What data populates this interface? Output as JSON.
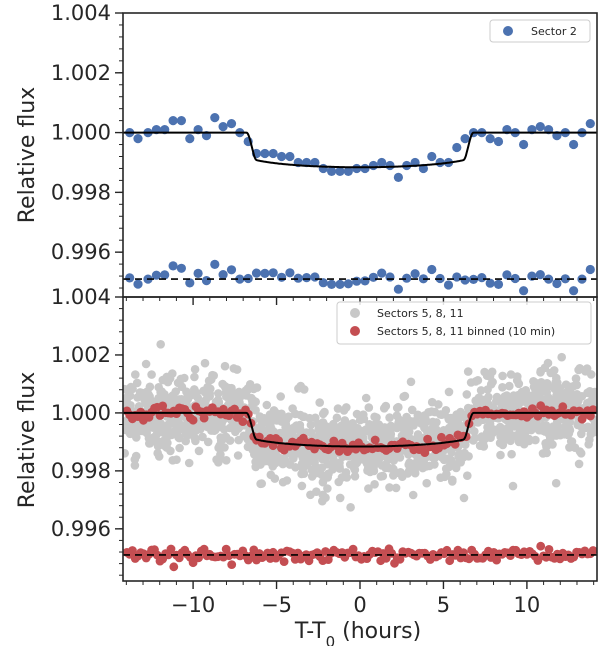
{
  "chart_data": [
    {
      "type": "scatter",
      "panel": "top",
      "xlim": [
        -14.2,
        14.2
      ],
      "ylim": [
        0.9945,
        1.004
      ],
      "ylabel": "Relative flux",
      "yticks": [
        0.996,
        0.998,
        1.0,
        1.002,
        1.004
      ],
      "ytick_labels": [
        "0.996",
        "0.998",
        "1.000",
        "1.002",
        "1.004"
      ],
      "grid": false,
      "legend_position": "top-right",
      "series": [
        {
          "name": "Sector 2",
          "kind": "points",
          "color": "#4c72b0",
          "x": [
            -13.8,
            -13.3,
            -12.7,
            -12.2,
            -11.7,
            -11.2,
            -10.7,
            -10.2,
            -9.7,
            -9.2,
            -8.7,
            -8.2,
            -7.7,
            -7.2,
            -6.7,
            -6.2,
            -5.7,
            -5.2,
            -4.7,
            -4.2,
            -3.7,
            -3.2,
            -2.7,
            -2.2,
            -1.7,
            -1.2,
            -0.7,
            -0.2,
            0.3,
            0.8,
            1.3,
            1.8,
            2.3,
            2.8,
            3.3,
            3.8,
            4.3,
            4.8,
            5.3,
            5.8,
            6.3,
            6.8,
            7.3,
            7.8,
            8.3,
            8.8,
            9.3,
            9.8,
            10.3,
            10.8,
            11.3,
            11.8,
            12.3,
            12.8,
            13.3,
            13.8
          ],
          "y": [
            1.0,
            0.9998,
            1.0,
            1.0001,
            1.0001,
            1.0004,
            1.0004,
            0.9998,
            1.0001,
            0.9999,
            1.0005,
            1.0002,
            1.0003,
            1.0,
            0.9997,
            0.9993,
            0.9993,
            0.9993,
            0.9992,
            0.9992,
            0.999,
            0.999,
            0.999,
            0.9988,
            0.9987,
            0.9987,
            0.9987,
            0.9988,
            0.9988,
            0.9989,
            0.999,
            0.9989,
            0.9985,
            0.9989,
            0.999,
            0.9988,
            0.9992,
            0.999,
            0.999,
            0.9995,
            0.9998,
            1.0,
            1.0,
            0.9998,
            0.9997,
            1.0001,
            1.0,
            0.9996,
            1.0001,
            1.0002,
            1.0001,
            0.9999,
            1.0,
            0.9996,
            1.0,
            1.0003
          ]
        },
        {
          "name": "Sector 2 residuals",
          "kind": "points",
          "color": "#4c72b0",
          "offset": 0.9951,
          "x": [
            -13.8,
            -13.3,
            -12.7,
            -12.2,
            -11.7,
            -11.2,
            -10.7,
            -10.2,
            -9.7,
            -9.2,
            -8.7,
            -8.2,
            -7.7,
            -7.2,
            -6.7,
            -6.2,
            -5.7,
            -5.2,
            -4.7,
            -4.2,
            -3.7,
            -3.2,
            -2.7,
            -2.2,
            -1.7,
            -1.2,
            -0.7,
            -0.2,
            0.3,
            0.8,
            1.3,
            1.8,
            2.3,
            2.8,
            3.3,
            3.8,
            4.3,
            4.8,
            5.3,
            5.8,
            6.3,
            6.8,
            7.3,
            7.8,
            8.3,
            8.8,
            9.3,
            9.8,
            10.3,
            10.8,
            11.3,
            11.8,
            12.3,
            12.8,
            13.3,
            13.8
          ],
          "y": [
            0.99514,
            0.99493,
            0.9951,
            0.99523,
            0.99524,
            0.99554,
            0.99546,
            0.99497,
            0.99529,
            0.99505,
            0.99559,
            0.99525,
            0.99541,
            0.9951,
            0.99512,
            0.9953,
            0.99529,
            0.99531,
            0.99516,
            0.99531,
            0.99513,
            0.99515,
            0.99517,
            0.99498,
            0.99492,
            0.99492,
            0.99494,
            0.99503,
            0.99504,
            0.99516,
            0.9953,
            0.99517,
            0.99476,
            0.99513,
            0.99528,
            0.99511,
            0.99542,
            0.99512,
            0.9949,
            0.99517,
            0.99507,
            0.99509,
            0.99515,
            0.99496,
            0.99492,
            0.99524,
            0.99512,
            0.99471,
            0.9952,
            0.99525,
            0.9951,
            0.99495,
            0.99511,
            0.99471,
            0.9951,
            0.99542
          ]
        }
      ],
      "model": {
        "depth": 0.00116,
        "t_ingress": 6.8,
        "ingress_width": 0.6,
        "limb_darkening": 0.35,
        "color": "#000000",
        "residual_line": 0.9951,
        "residual_line_style": "dashed"
      }
    },
    {
      "type": "scatter",
      "panel": "bottom",
      "xlim": [
        -14.2,
        14.2
      ],
      "ylim": [
        0.9942,
        1.004
      ],
      "xlabel_main": "T-T",
      "xlabel_sub": "0",
      "xlabel_tail": " (hours)",
      "ylabel": "Relative flux",
      "xticks": [
        -10,
        -5,
        0,
        5,
        10
      ],
      "xtick_labels": [
        "−10",
        "−5",
        "0",
        "5",
        "10"
      ],
      "yticks": [
        0.996,
        0.998,
        1.0,
        1.002,
        1.004
      ],
      "ytick_labels": [
        "0.996",
        "0.998",
        "1.000",
        "1.002",
        "1.004"
      ],
      "grid": false,
      "legend_position": "top-right",
      "series": [
        {
          "name": "Sectors 5, 8, 11",
          "kind": "cloud",
          "color": "#c8c8c8",
          "n_points": 1500,
          "scatter_sigma": 0.0007
        },
        {
          "name": "Sectors 5, 8, 11 binned (10 min)",
          "kind": "binned",
          "color": "#c44e52",
          "n_points": 170,
          "scatter_sigma": 0.00012,
          "offset": 0.9951
        }
      ],
      "model": {
        "depth": 0.00116,
        "t_ingress": 6.8,
        "ingress_width": 0.6,
        "limb_darkening": 0.35,
        "color": "#000000",
        "residual_line": 0.9951,
        "residual_line_style": "dashed"
      }
    }
  ]
}
